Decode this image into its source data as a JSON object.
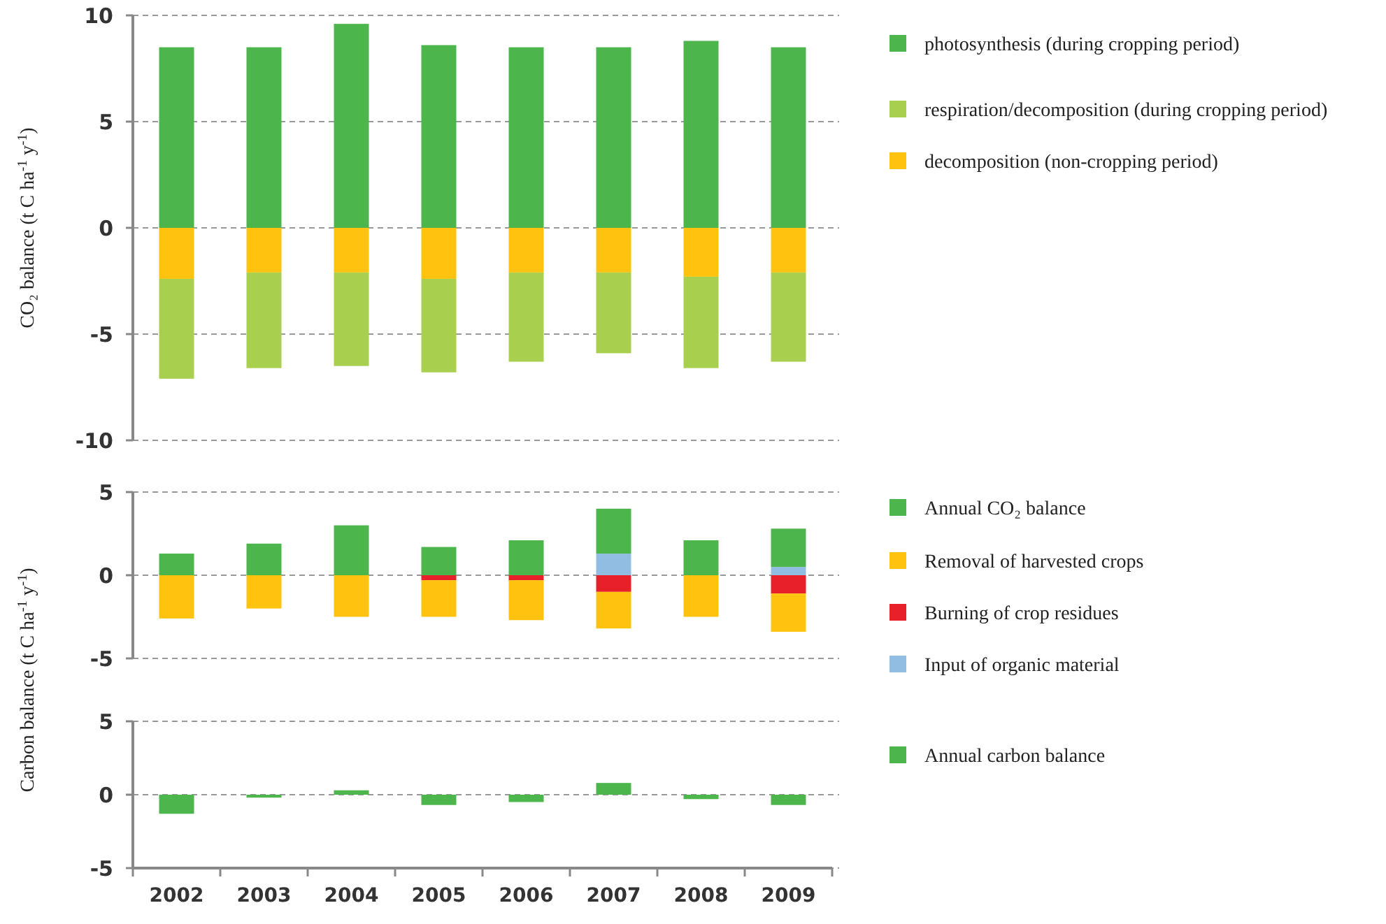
{
  "chart_data": [
    {
      "type": "bar",
      "stacked": true,
      "ylabel": "CO₂ balance (t C ha$^{-1}$ y$^{-1}$)",
      "categories": [
        "2002",
        "2003",
        "2004",
        "2005",
        "2006",
        "2007",
        "2008",
        "2009"
      ],
      "ylim": [
        -10,
        10
      ],
      "yticks": [
        -10,
        -5,
        0,
        5,
        10
      ],
      "grid": "y",
      "legend": "right",
      "tick_labels": "y",
      "series": [
        {
          "name": "photosynthesis (during cropping period)",
          "color": "#4cb64c",
          "values": [
            8.5,
            8.5,
            9.6,
            8.6,
            8.5,
            8.5,
            8.8,
            8.5
          ]
        },
        {
          "name": "decomposition (non-cropping period)",
          "color": "#ffc30f",
          "values": [
            -2.4,
            -2.1,
            -2.1,
            -2.4,
            -2.1,
            -2.1,
            -2.3,
            -2.1
          ]
        },
        {
          "name": "respiration/decomposition (during cropping period)",
          "color": "#a8d04e",
          "values": [
            -4.7,
            -4.5,
            -4.4,
            -4.4,
            -4.2,
            -3.8,
            -4.3,
            -4.2
          ]
        }
      ]
    },
    {
      "type": "bar",
      "stacked": true,
      "ylabel": "Carbon balance (t C ha$^{-1}$ y$^{-1}$)",
      "categories": [
        "2002",
        "2003",
        "2004",
        "2005",
        "2006",
        "2007",
        "2008",
        "2009"
      ],
      "ylim": [
        -5,
        5
      ],
      "yticks": [
        -5,
        0,
        5
      ],
      "grid": "y",
      "legend": "right",
      "tick_labels": "y",
      "series": [
        {
          "name": "Input of organic material",
          "color": "#92bde3",
          "values": [
            null,
            null,
            null,
            null,
            null,
            1.3,
            null,
            0.5
          ]
        },
        {
          "name": "Annual CO₂  balance",
          "color": "#4cb64c",
          "values": [
            1.3,
            1.9,
            3.0,
            1.7,
            2.1,
            2.7,
            2.1,
            2.3
          ]
        },
        {
          "name": "Burning of crop residues",
          "color": "#e8202a",
          "values": [
            null,
            null,
            null,
            -0.3,
            -0.3,
            -1.0,
            null,
            -1.1
          ]
        },
        {
          "name": "Removal of harvested crops",
          "color": "#ffc30f",
          "values": [
            -2.6,
            -2.0,
            -2.5,
            -2.2,
            -2.4,
            -2.2,
            -2.5,
            -2.3
          ]
        }
      ]
    },
    {
      "type": "bar",
      "categories": [
        "2002",
        "2003",
        "2004",
        "2005",
        "2006",
        "2007",
        "2008",
        "2009"
      ],
      "ylim": [
        -5,
        5
      ],
      "yticks": [
        -5,
        0,
        5
      ],
      "grid": "y",
      "legend": "right",
      "series": [
        {
          "name": "Annual carbon balance",
          "color": "#4cb64c",
          "values": [
            -1.3,
            -0.2,
            0.3,
            -0.7,
            -0.5,
            0.8,
            -0.3,
            -0.7
          ]
        }
      ]
    }
  ]
}
